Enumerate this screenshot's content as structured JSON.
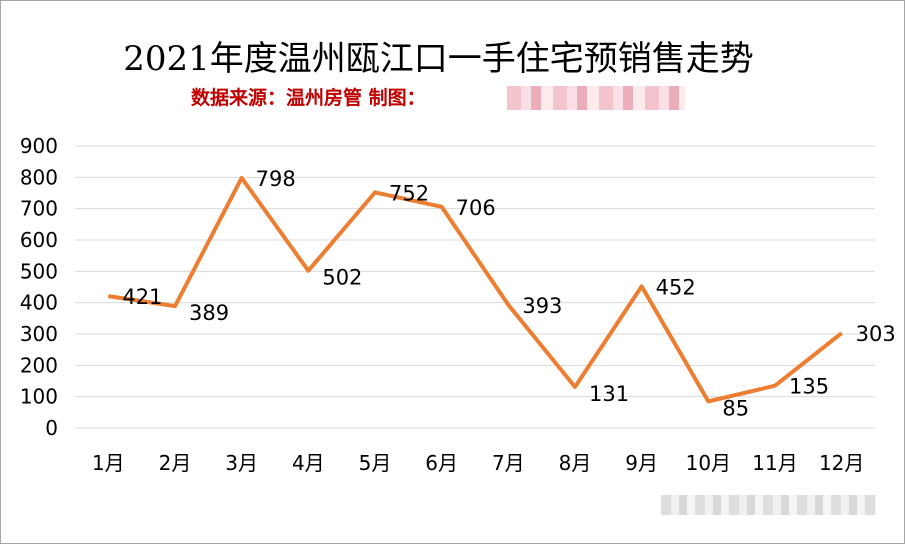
{
  "chart_data": {
    "type": "line",
    "title": "2021年度温州瓯江口一手住宅预销售走势",
    "subtitle": "数据来源：温州房管   制图：",
    "categories": [
      "1月",
      "2月",
      "3月",
      "4月",
      "5月",
      "6月",
      "7月",
      "8月",
      "9月",
      "10月",
      "11月",
      "12月"
    ],
    "series": [
      {
        "values": [
          421,
          389,
          798,
          502,
          752,
          706,
          393,
          131,
          452,
          85,
          135,
          303
        ]
      }
    ],
    "ylim": [
      0,
      900
    ],
    "yticks": [
      "0",
      "100",
      "200",
      "300",
      "400",
      "500",
      "600",
      "700",
      "800",
      "900"
    ],
    "grid": true,
    "legend": "none",
    "data_labels": [
      "421",
      "389",
      "798",
      "502",
      "752",
      "706",
      "393",
      "131",
      "452",
      "85",
      "135",
      "303"
    ],
    "colors": {
      "line": "#ed7d31",
      "subtitle": "#c00000",
      "grid": "#d9d9d9"
    }
  }
}
